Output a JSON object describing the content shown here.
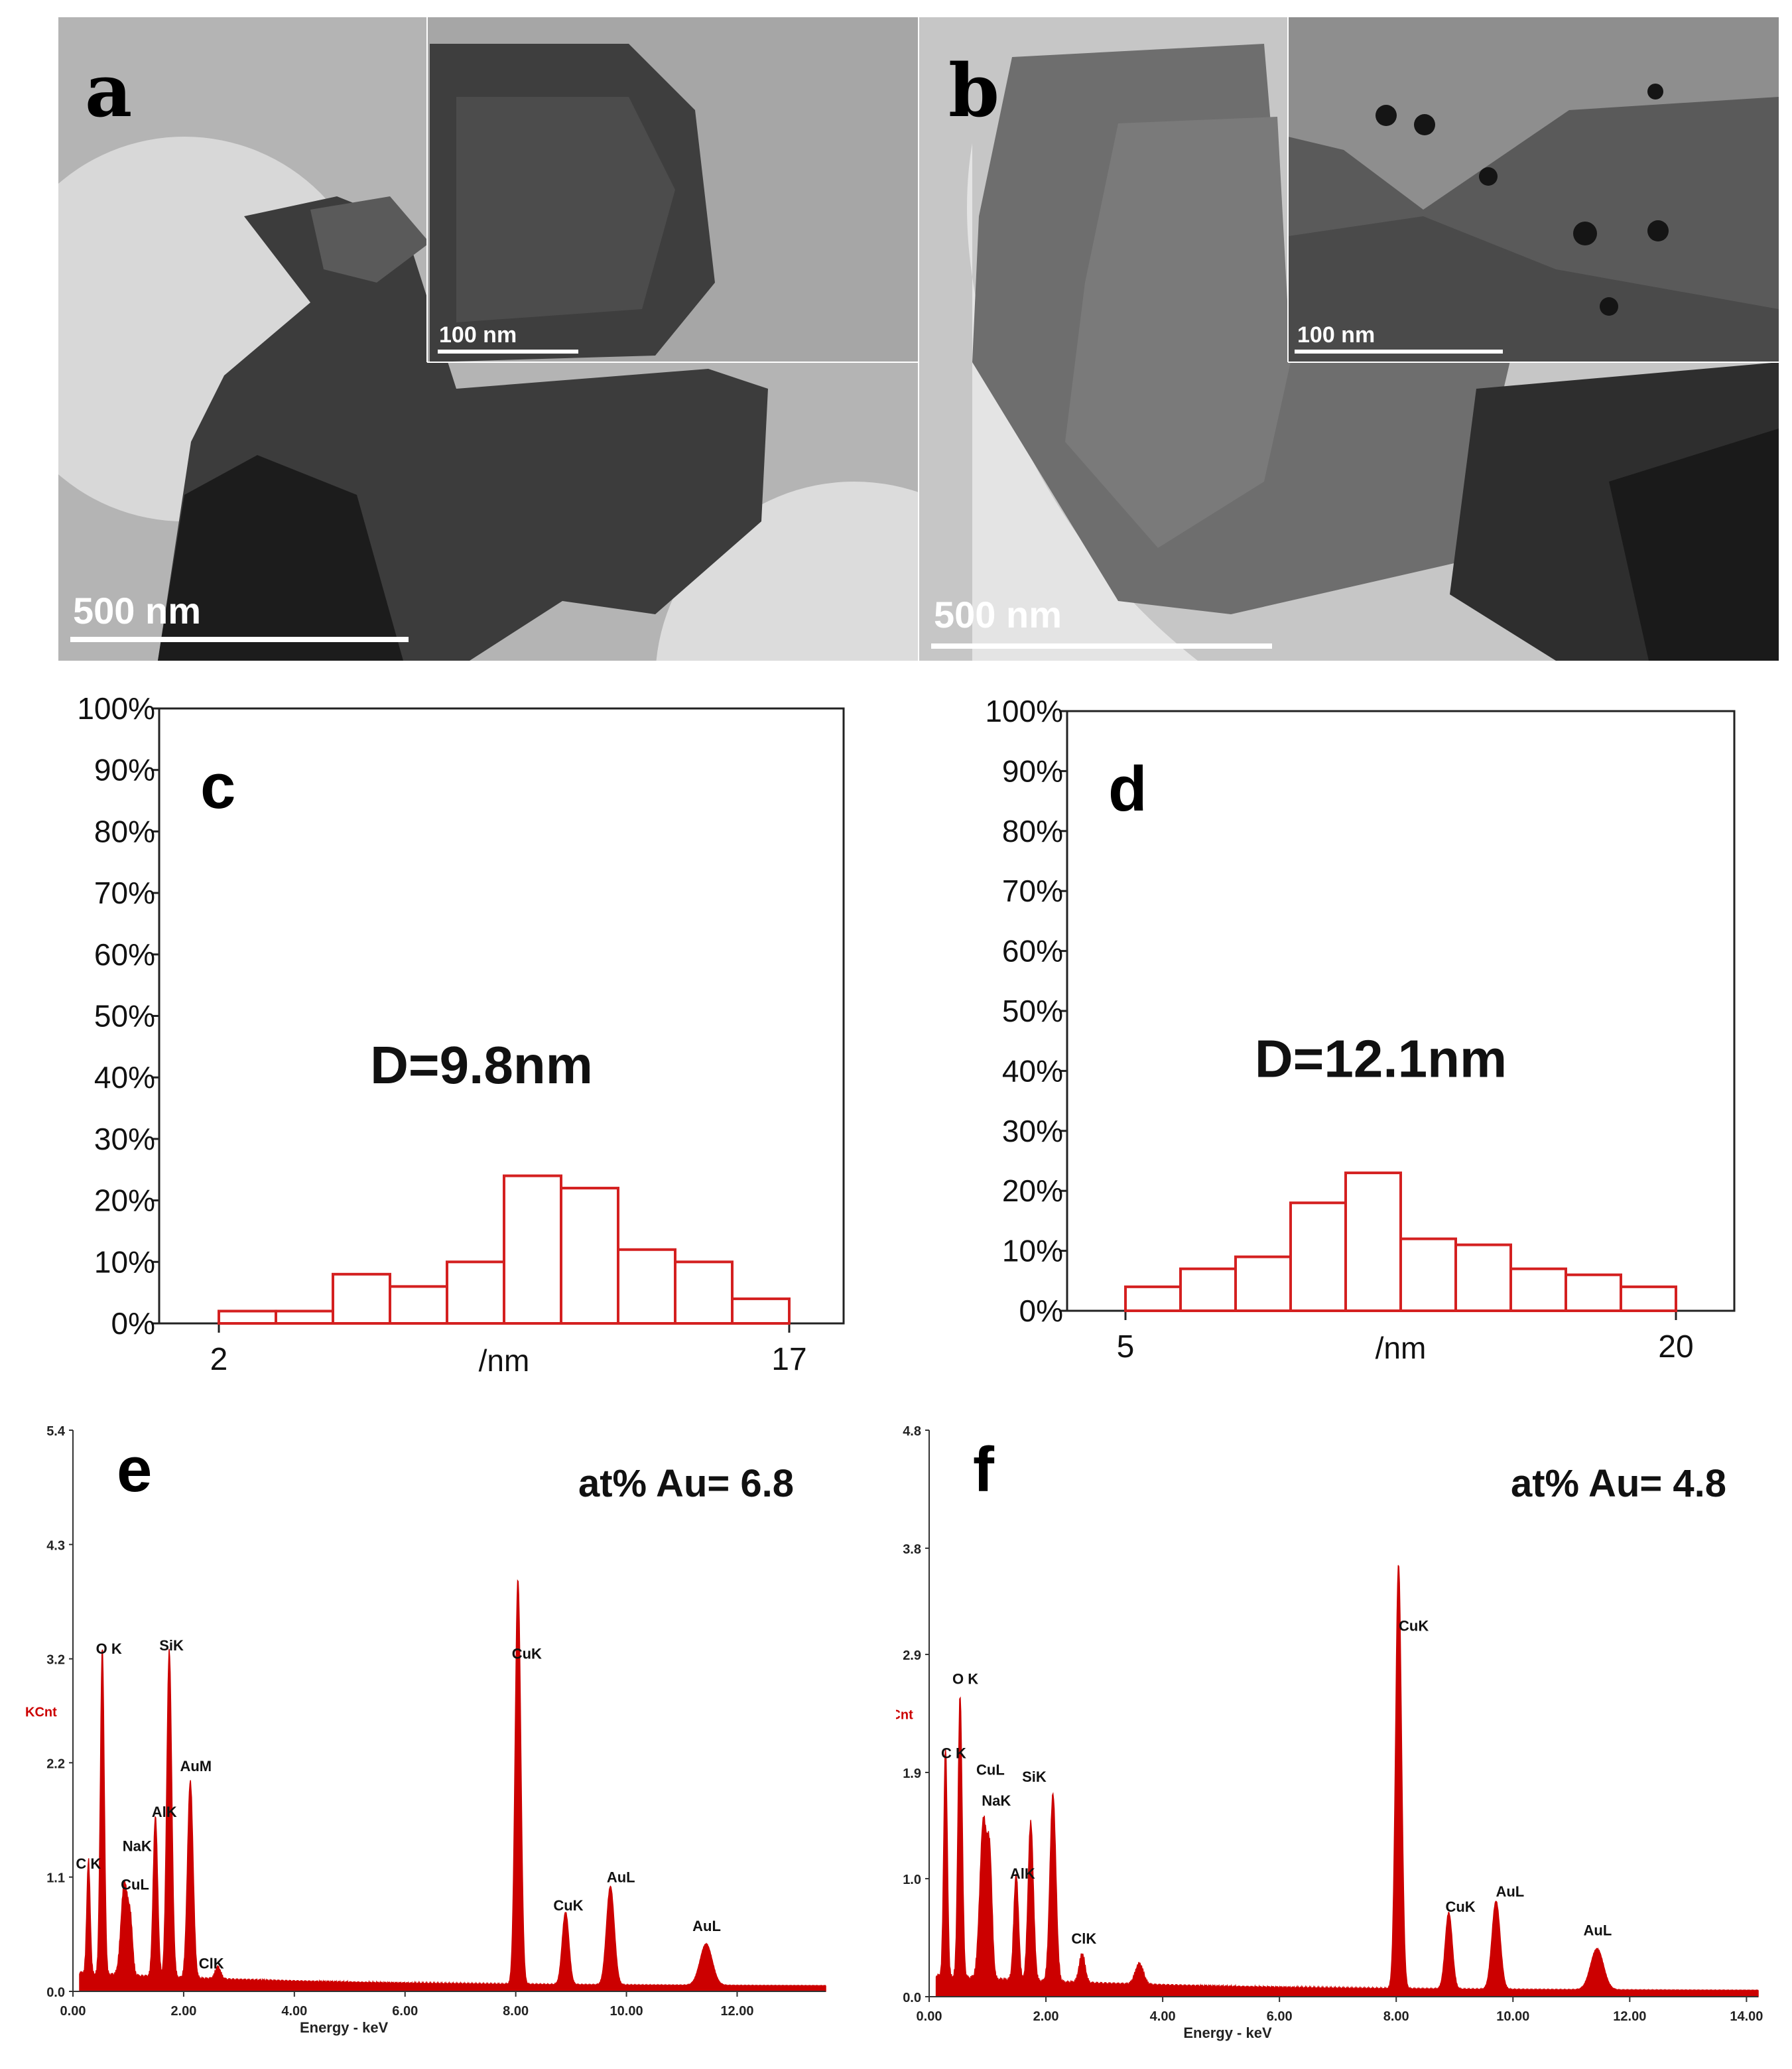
{
  "tem": {
    "a": {
      "letter": "a",
      "scale_main": "500 nm",
      "scale_inset": "100 nm"
    },
    "b": {
      "letter": "b",
      "scale_main": "500 nm",
      "scale_inset": "100 nm"
    }
  },
  "chart_data": [
    {
      "panel": "c",
      "type": "bar",
      "title": "D=9.8nm",
      "xlabel": "/nm",
      "xlim": [
        2,
        17
      ],
      "x_tick_labels": [
        "2",
        "17"
      ],
      "ylim": [
        0,
        100
      ],
      "y_tick_labels": [
        "0%",
        "10%",
        "20%",
        "30%",
        "40%",
        "50%",
        "60%",
        "70%",
        "80%",
        "90%",
        "100%"
      ],
      "bins": [
        [
          2,
          3.5
        ],
        [
          3.5,
          5
        ],
        [
          5,
          6.5
        ],
        [
          6.5,
          8
        ],
        [
          8,
          9.5
        ],
        [
          9.5,
          11
        ],
        [
          11,
          12.5
        ],
        [
          12.5,
          14
        ],
        [
          14,
          15.5
        ],
        [
          15.5,
          17
        ]
      ],
      "values": [
        2,
        2,
        8,
        6,
        10,
        24,
        22,
        12,
        10,
        4
      ],
      "bar_color": "#d42020"
    },
    {
      "panel": "d",
      "type": "bar",
      "title": "D=12.1nm",
      "xlabel": "/nm",
      "xlim": [
        5,
        20
      ],
      "x_tick_labels": [
        "5",
        "20"
      ],
      "ylim": [
        0,
        100
      ],
      "y_tick_labels": [
        "0%",
        "10%",
        "20%",
        "30%",
        "40%",
        "50%",
        "60%",
        "70%",
        "80%",
        "90%",
        "100%"
      ],
      "bins": [
        [
          5,
          6.5
        ],
        [
          6.5,
          8
        ],
        [
          8,
          9.5
        ],
        [
          9.5,
          11
        ],
        [
          11,
          12.5
        ],
        [
          12.5,
          14
        ],
        [
          14,
          15.5
        ],
        [
          15.5,
          17
        ],
        [
          17,
          18.5
        ],
        [
          18.5,
          20
        ]
      ],
      "values": [
        4,
        7,
        9,
        18,
        23,
        12,
        11,
        7,
        6,
        4
      ],
      "bar_color": "#d42020"
    },
    {
      "panel": "e",
      "type": "line",
      "annotation": "at% Au= 6.8",
      "xlabel": "Energy - keV",
      "ylabel": "KCnt",
      "xlim": [
        0,
        13.6
      ],
      "ylim": [
        0,
        5.4
      ],
      "x_tick_labels": [
        "0.00",
        "2.00",
        "4.00",
        "6.00",
        "8.00",
        "10.00",
        "12.00"
      ],
      "y_ticks": [
        0,
        1.1,
        2.2,
        3.2,
        4.3,
        5.4
      ],
      "y_tick_labels": [
        "0.0",
        "1.1",
        "2.2",
        "3.2",
        "4.3",
        "5.4"
      ],
      "baseline": 0.12,
      "peaks": [
        {
          "label": "C K",
          "e": 0.28,
          "h": 1.1,
          "w": 0.03
        },
        {
          "label": "O K",
          "e": 0.53,
          "h": 3.15,
          "w": 0.035
        },
        {
          "label": "CuL",
          "e": 0.93,
          "h": 0.9,
          "w": 0.06
        },
        {
          "label": "NaK",
          "e": 1.04,
          "h": 0.45,
          "w": 0.04
        },
        {
          "label": "AlK",
          "e": 1.49,
          "h": 1.55,
          "w": 0.04
        },
        {
          "label": "SiK",
          "e": 1.74,
          "h": 3.15,
          "w": 0.045
        },
        {
          "label": "AuM",
          "e": 2.12,
          "h": 1.9,
          "w": 0.05
        },
        {
          "label": "ClK",
          "e": 2.62,
          "h": 0.12,
          "w": 0.05
        },
        {
          "label": "CuK",
          "e": 8.04,
          "h": 3.9,
          "w": 0.05
        },
        {
          "label": "CuK",
          "e": 8.9,
          "h": 0.7,
          "w": 0.06
        },
        {
          "label": "AuL",
          "e": 9.71,
          "h": 0.95,
          "w": 0.07
        },
        {
          "label": "AuL",
          "e": 11.44,
          "h": 0.4,
          "w": 0.11
        }
      ],
      "peak_labels": [
        {
          "text": "C K",
          "e": 0.28,
          "y": 1.18
        },
        {
          "text": "O K",
          "e": 0.65,
          "y": 3.25
        },
        {
          "text": "CuL",
          "e": 1.12,
          "y": 0.98
        },
        {
          "text": "NaK",
          "e": 1.16,
          "y": 1.35
        },
        {
          "text": "AlK",
          "e": 1.65,
          "y": 1.68
        },
        {
          "text": "SiK",
          "e": 1.78,
          "y": 3.28
        },
        {
          "text": "AuM",
          "e": 2.22,
          "y": 2.12
        },
        {
          "text": "ClK",
          "e": 2.5,
          "y": 0.22
        },
        {
          "text": "CuK",
          "e": 8.2,
          "y": 3.2
        },
        {
          "text": "CuK",
          "e": 8.95,
          "y": 0.78
        },
        {
          "text": "AuL",
          "e": 9.9,
          "y": 1.05
        },
        {
          "text": "AuL",
          "e": 11.45,
          "y": 0.58
        }
      ],
      "color": "#cc0000"
    },
    {
      "panel": "f",
      "type": "line",
      "annotation": "at% Au= 4.8",
      "xlabel": "Energy - keV",
      "ylabel": "KCnt",
      "xlim": [
        0,
        14.2
      ],
      "ylim": [
        0,
        4.8
      ],
      "x_tick_labels": [
        "0.00",
        "2.00",
        "4.00",
        "6.00",
        "8.00",
        "10.00",
        "12.00",
        "14.00"
      ],
      "y_ticks": [
        0,
        1.0,
        1.9,
        2.9,
        3.8,
        4.8
      ],
      "y_tick_labels": [
        "0.0",
        "1.0",
        "1.9",
        "2.9",
        "3.8",
        "4.8"
      ],
      "baseline": 0.12,
      "peaks": [
        {
          "label": "C K",
          "e": 0.28,
          "h": 1.95,
          "w": 0.03
        },
        {
          "label": "O K",
          "e": 0.53,
          "h": 2.4,
          "w": 0.035
        },
        {
          "label": "CuL",
          "e": 0.93,
          "h": 1.35,
          "w": 0.06
        },
        {
          "label": "NaK",
          "e": 1.04,
          "h": 0.9,
          "w": 0.04
        },
        {
          "label": "AlK",
          "e": 1.49,
          "h": 0.9,
          "w": 0.04
        },
        {
          "label": "SiK",
          "e": 1.74,
          "h": 1.35,
          "w": 0.045
        },
        {
          "label": "AuM",
          "e": 2.12,
          "h": 1.6,
          "w": 0.05
        },
        {
          "label": "ClK",
          "e": 2.62,
          "h": 0.25,
          "w": 0.05
        },
        {
          "label": "",
          "e": 3.6,
          "h": 0.18,
          "w": 0.07
        },
        {
          "label": "CuK",
          "e": 8.04,
          "h": 3.6,
          "w": 0.05
        },
        {
          "label": "CuK",
          "e": 8.9,
          "h": 0.65,
          "w": 0.06
        },
        {
          "label": "AuL",
          "e": 9.71,
          "h": 0.75,
          "w": 0.07
        },
        {
          "label": "AuL",
          "e": 11.44,
          "h": 0.35,
          "w": 0.11
        }
      ],
      "peak_labels": [
        {
          "text": "C K",
          "e": 0.42,
          "y": 2.02
        },
        {
          "text": "O K",
          "e": 0.62,
          "y": 2.65
        },
        {
          "text": "CuL",
          "e": 1.05,
          "y": 1.88
        },
        {
          "text": "NaK",
          "e": 1.15,
          "y": 1.62
        },
        {
          "text": "SiK",
          "e": 1.8,
          "y": 1.82
        },
        {
          "text": "AlK",
          "e": 1.6,
          "y": 1.0
        },
        {
          "text": "ClK",
          "e": 2.65,
          "y": 0.45
        },
        {
          "text": "CuK",
          "e": 8.3,
          "y": 3.1
        },
        {
          "text": "CuK",
          "e": 9.1,
          "y": 0.72
        },
        {
          "text": "AuL",
          "e": 9.95,
          "y": 0.85
        },
        {
          "text": "AuL",
          "e": 11.45,
          "y": 0.52
        }
      ],
      "color": "#cc0000"
    }
  ]
}
